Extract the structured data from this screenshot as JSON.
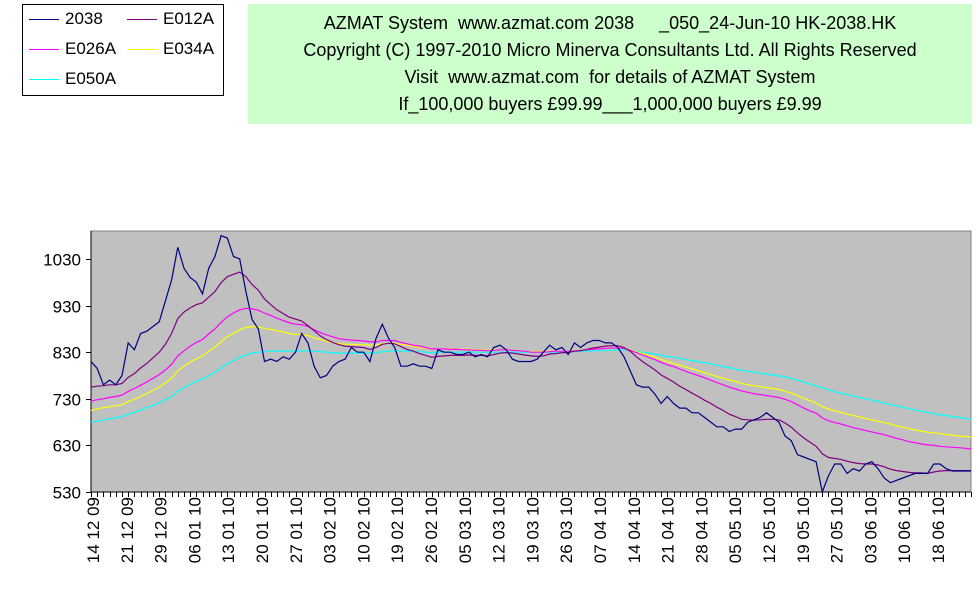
{
  "legend": {
    "items": [
      {
        "label": "2038",
        "color": "#000080"
      },
      {
        "label": "E012A",
        "color": "#800080"
      },
      {
        "label": "E026A",
        "color": "#ff00ff"
      },
      {
        "label": "E034A",
        "color": "#ffff00"
      },
      {
        "label": "E050A",
        "color": "#00ffff"
      }
    ]
  },
  "info": {
    "line1": "AZMAT System  www.azmat.com 2038     _050_24-Jun-10 HK-2038.HK",
    "line2": "Copyright (C) 1997-2010 Micro Minerva Consultants Ltd. All Rights Reserved",
    "line3": "Visit  www.azmat.com  for details of AZMAT System",
    "line4": "If_100,000 buyers £99.99___1,000,000 buyers £9.99"
  },
  "chart_data": {
    "type": "line",
    "plot_background": "#c0c0c0",
    "ylim": [
      530,
      1090
    ],
    "yticks": [
      530,
      630,
      730,
      830,
      930,
      1030
    ],
    "x_tick_labels": [
      "14 12 09",
      "21 12 09",
      "29 12 09",
      "06 01 10",
      "13 01 10",
      "20 01 10",
      "27 01 10",
      "03 02 10",
      "10 02 10",
      "19 02 10",
      "26 02 10",
      "05 03 10",
      "12 03 10",
      "19 03 10",
      "26 03 10",
      "07 04 10",
      "14 04 10",
      "21 04 10",
      "28 04 10",
      "05 05 10",
      "12 05 10",
      "19 05 10",
      "27 05 10",
      "03 06 10",
      "10 06 10",
      "18 06 10"
    ],
    "series": [
      {
        "name": "2038",
        "color": "#000080",
        "values": [
          810,
          795,
          760,
          770,
          760,
          780,
          850,
          835,
          870,
          875,
          885,
          895,
          940,
          985,
          1055,
          1010,
          990,
          980,
          955,
          1010,
          1035,
          1080,
          1075,
          1035,
          1030,
          960,
          900,
          880,
          810,
          815,
          810,
          820,
          815,
          830,
          870,
          850,
          800,
          775,
          780,
          800,
          810,
          815,
          840,
          830,
          830,
          810,
          860,
          890,
          860,
          840,
          800,
          800,
          805,
          800,
          800,
          795,
          835,
          830,
          830,
          825,
          825,
          830,
          820,
          825,
          820,
          840,
          845,
          835,
          815,
          810,
          810,
          810,
          815,
          830,
          845,
          835,
          840,
          825,
          850,
          840,
          850,
          855,
          855,
          850,
          850,
          840,
          820,
          790,
          760,
          755,
          755,
          740,
          720,
          735,
          720,
          710,
          710,
          700,
          700,
          690,
          680,
          670,
          670,
          660,
          665,
          665,
          680,
          685,
          690,
          700,
          690,
          680,
          650,
          640,
          610,
          605,
          600,
          595,
          530,
          565,
          590,
          590,
          570,
          580,
          575,
          590,
          595,
          580,
          560,
          550,
          555,
          560,
          565,
          570,
          570,
          570,
          590,
          590,
          580,
          575,
          575,
          575,
          575
        ]
      },
      {
        "name": "E012A",
        "color": "#800080",
        "values": [
          755,
          757,
          758,
          760,
          760,
          763,
          776,
          784,
          796,
          806,
          818,
          830,
          847,
          870,
          902,
          916,
          925,
          932,
          936,
          948,
          960,
          979,
          992,
          997,
          1002,
          992,
          975,
          963,
          944,
          932,
          921,
          913,
          905,
          901,
          897,
          887,
          876,
          865,
          857,
          851,
          846,
          843,
          842,
          841,
          840,
          836,
          840,
          847,
          849,
          848,
          842,
          836,
          832,
          827,
          823,
          819,
          821,
          822,
          823,
          823,
          823,
          824,
          823,
          823,
          822,
          825,
          828,
          829,
          828,
          826,
          824,
          822,
          821,
          822,
          826,
          827,
          829,
          829,
          832,
          833,
          836,
          839,
          841,
          843,
          844,
          844,
          840,
          832,
          820,
          810,
          801,
          792,
          781,
          774,
          766,
          757,
          750,
          742,
          735,
          727,
          720,
          712,
          705,
          697,
          692,
          686,
          685,
          684,
          685,
          686,
          686,
          685,
          678,
          669,
          657,
          646,
          637,
          628,
          612,
          604,
          602,
          600,
          596,
          593,
          591,
          590,
          590,
          588,
          584,
          579,
          576,
          574,
          572,
          571,
          571,
          570,
          573,
          575,
          576,
          576,
          576,
          576,
          576
        ]
      },
      {
        "name": "E026A",
        "color": "#ff00ff",
        "values": [
          725,
          728,
          730,
          733,
          735,
          738,
          746,
          752,
          759,
          766,
          774,
          782,
          792,
          804,
          822,
          833,
          843,
          851,
          857,
          869,
          880,
          894,
          906,
          914,
          921,
          924,
          923,
          920,
          914,
          909,
          903,
          898,
          893,
          890,
          889,
          885,
          878,
          872,
          867,
          863,
          859,
          857,
          856,
          855,
          854,
          852,
          852,
          855,
          855,
          855,
          851,
          848,
          845,
          843,
          840,
          837,
          837,
          837,
          836,
          836,
          835,
          835,
          834,
          834,
          833,
          834,
          835,
          835,
          834,
          833,
          832,
          830,
          830,
          830,
          831,
          832,
          832,
          832,
          833,
          834,
          835,
          836,
          837,
          838,
          839,
          839,
          838,
          834,
          829,
          824,
          819,
          814,
          808,
          803,
          799,
          794,
          789,
          784,
          780,
          775,
          770,
          765,
          760,
          755,
          751,
          747,
          744,
          741,
          739,
          737,
          735,
          733,
          729,
          724,
          717,
          710,
          704,
          699,
          689,
          683,
          679,
          676,
          672,
          668,
          665,
          662,
          659,
          656,
          653,
          649,
          645,
          642,
          638,
          636,
          633,
          631,
          630,
          628,
          627,
          626,
          625,
          624,
          622
        ]
      },
      {
        "name": "E034A",
        "color": "#ffff00",
        "values": [
          705,
          708,
          711,
          713,
          715,
          717,
          724,
          729,
          735,
          741,
          748,
          755,
          764,
          774,
          790,
          800,
          809,
          816,
          822,
          832,
          841,
          853,
          863,
          871,
          878,
          883,
          885,
          884,
          881,
          879,
          876,
          873,
          870,
          868,
          868,
          866,
          861,
          857,
          854,
          851,
          848,
          847,
          847,
          846,
          846,
          845,
          845,
          848,
          849,
          849,
          847,
          845,
          843,
          841,
          839,
          837,
          837,
          837,
          837,
          836,
          836,
          836,
          835,
          835,
          834,
          835,
          835,
          835,
          834,
          833,
          832,
          831,
          831,
          831,
          832,
          832,
          833,
          833,
          834,
          834,
          835,
          836,
          837,
          838,
          838,
          839,
          838,
          835,
          831,
          827,
          823,
          819,
          814,
          810,
          806,
          802,
          798,
          794,
          790,
          786,
          782,
          778,
          774,
          770,
          767,
          763,
          760,
          758,
          756,
          754,
          752,
          750,
          746,
          742,
          737,
          731,
          726,
          721,
          713,
          708,
          704,
          701,
          697,
          694,
          691,
          688,
          685,
          682,
          679,
          676,
          672,
          669,
          666,
          663,
          661,
          658,
          657,
          655,
          653,
          652,
          650,
          649,
          648
        ]
      },
      {
        "name": "E050A",
        "color": "#00ffff",
        "values": [
          680,
          682,
          685,
          687,
          689,
          692,
          697,
          701,
          706,
          711,
          716,
          721,
          728,
          735,
          746,
          754,
          761,
          767,
          772,
          780,
          787,
          796,
          805,
          812,
          819,
          824,
          828,
          830,
          831,
          832,
          832,
          832,
          832,
          832,
          833,
          833,
          832,
          831,
          830,
          829,
          828,
          828,
          828,
          828,
          828,
          828,
          829,
          831,
          832,
          833,
          833,
          832,
          831,
          831,
          830,
          829,
          830,
          830,
          830,
          830,
          830,
          830,
          830,
          830,
          830,
          830,
          830,
          830,
          830,
          830,
          830,
          830,
          830,
          830,
          830,
          830,
          831,
          831,
          831,
          832,
          832,
          833,
          833,
          834,
          834,
          835,
          835,
          834,
          832,
          830,
          828,
          826,
          823,
          821,
          819,
          817,
          814,
          812,
          810,
          807,
          805,
          802,
          799,
          797,
          794,
          791,
          789,
          787,
          785,
          783,
          781,
          779,
          777,
          774,
          770,
          766,
          762,
          758,
          753,
          749,
          745,
          742,
          739,
          736,
          733,
          730,
          727,
          724,
          721,
          718,
          715,
          712,
          709,
          706,
          703,
          701,
          698,
          696,
          694,
          692,
          690,
          688,
          686
        ]
      }
    ]
  }
}
